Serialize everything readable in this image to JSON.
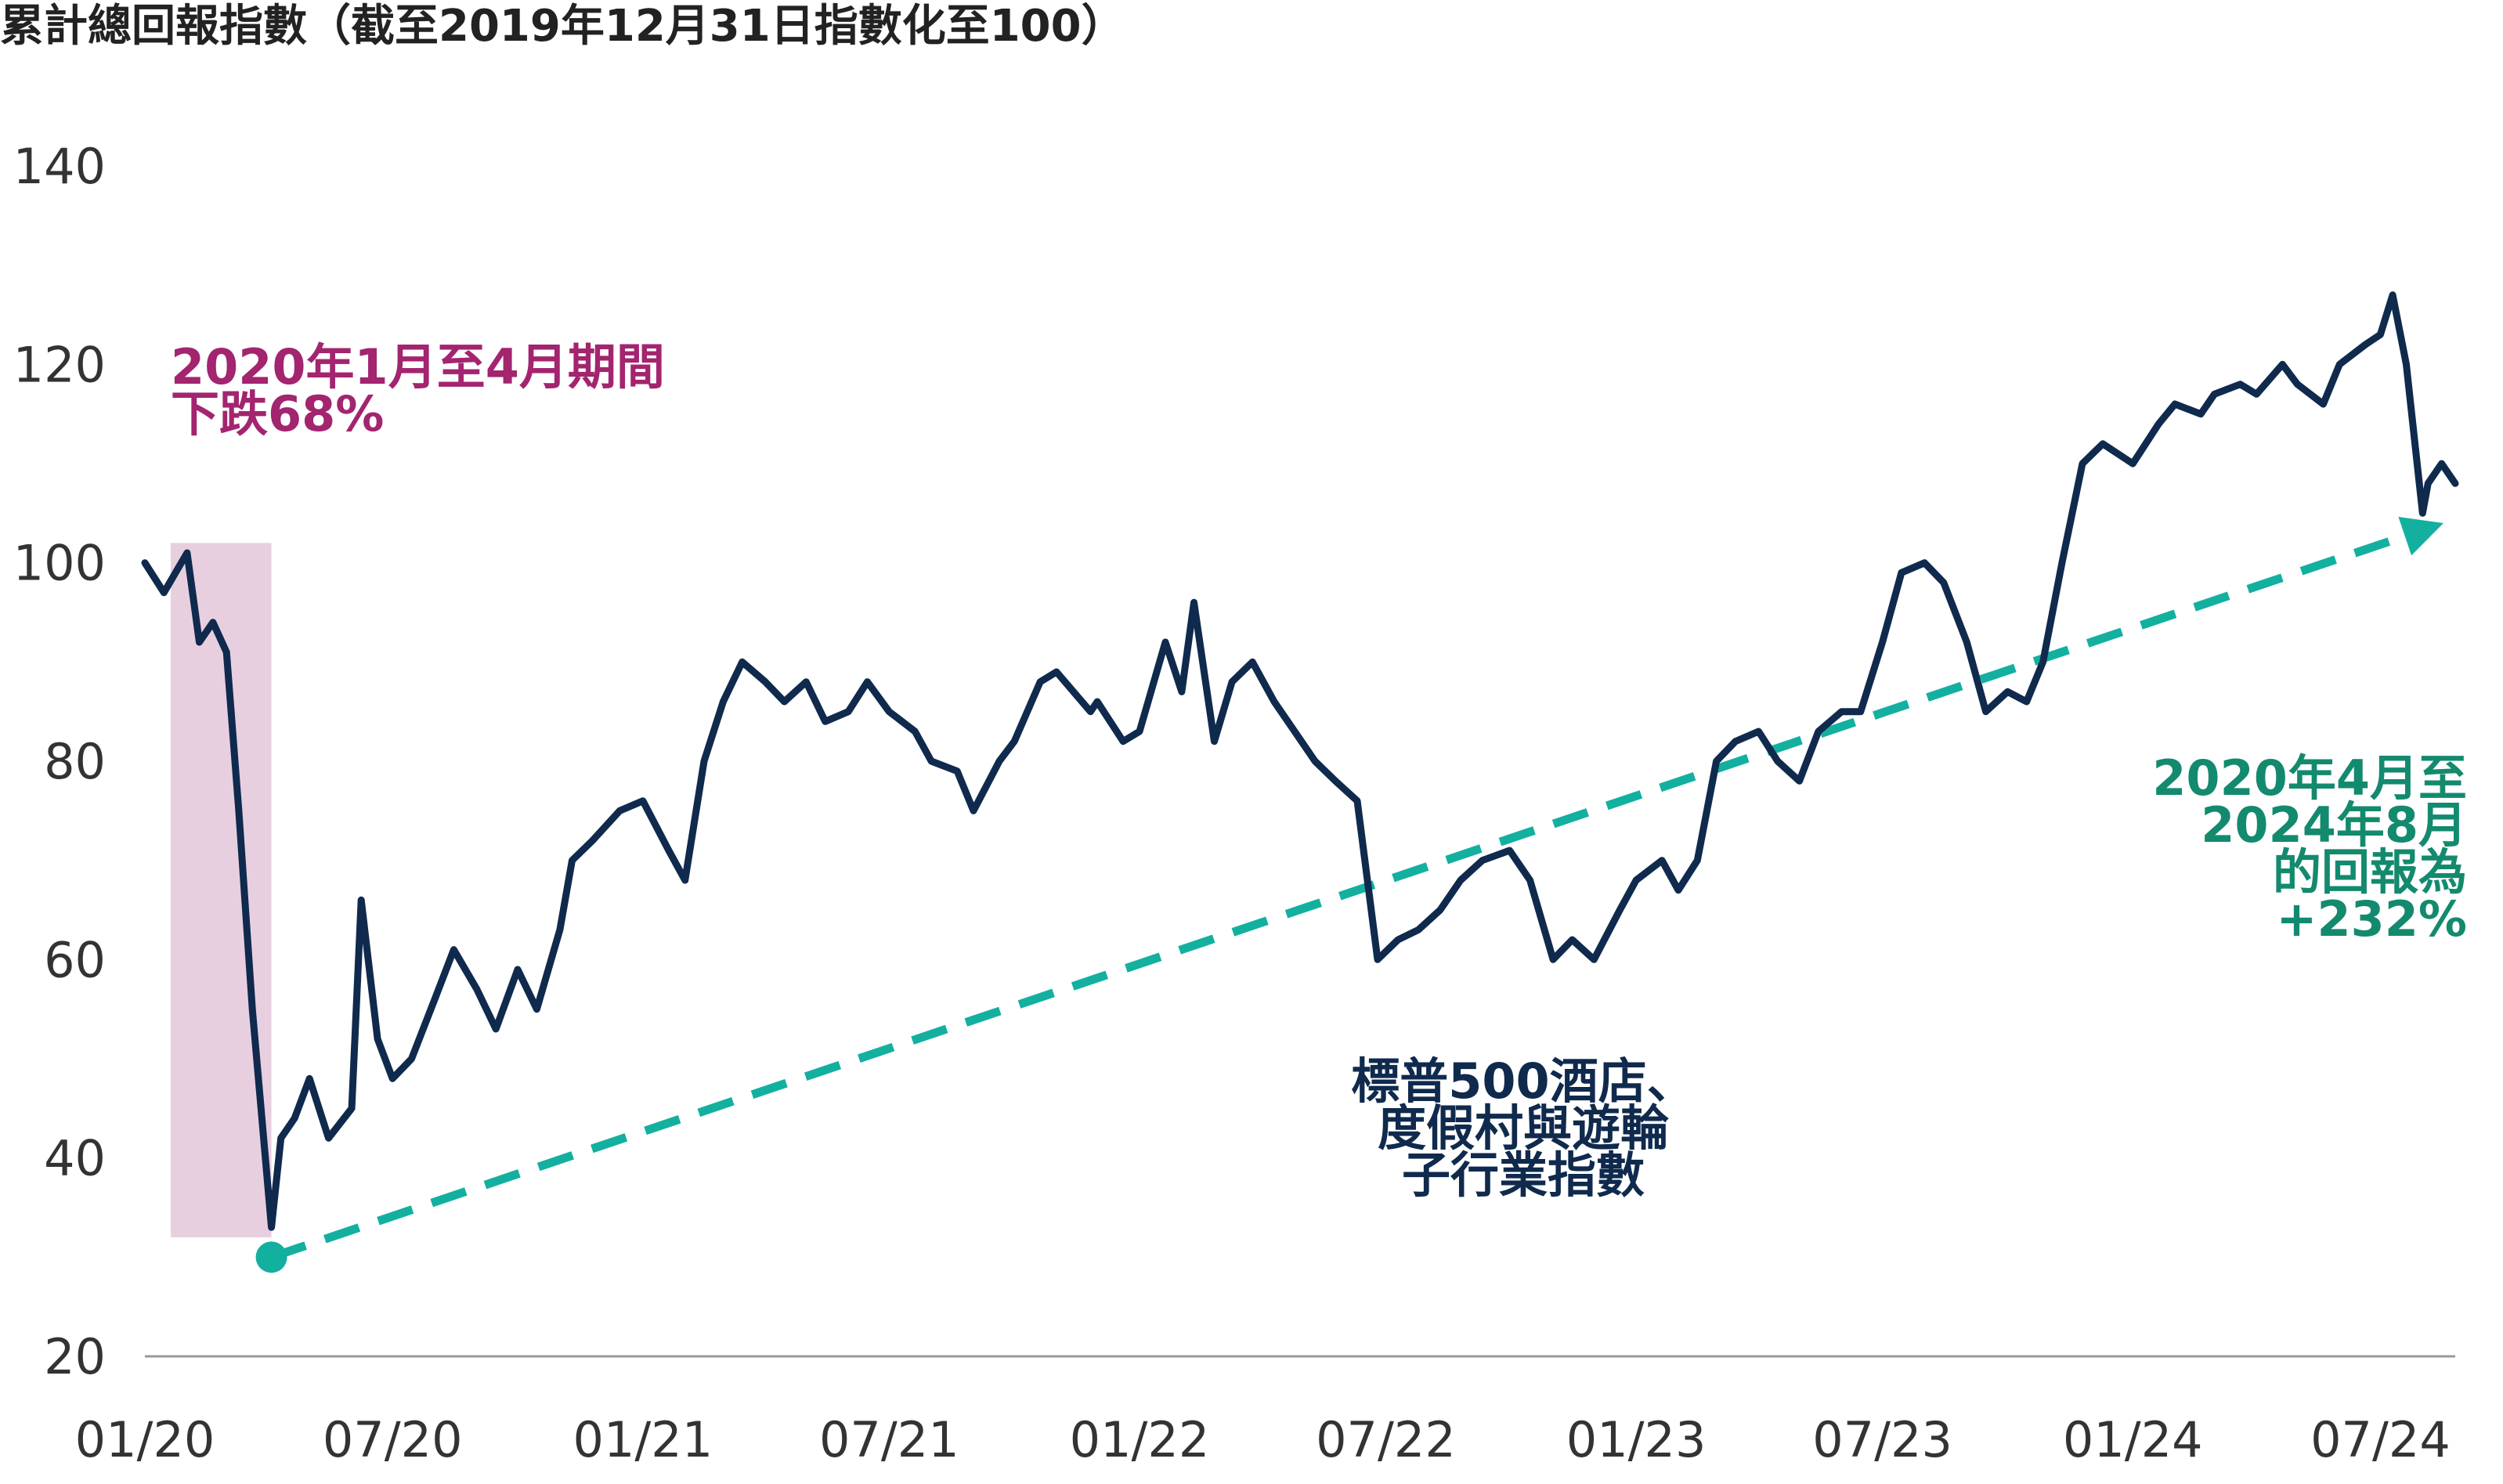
{
  "title": "累計總回報指數（截至2019年12月31日指數化至100）",
  "colors": {
    "series": "#0f2a4d",
    "trend": "#13b0a0",
    "shade": "#e8cfe0",
    "drop_annotation": "#a3246f",
    "gain_annotation": "#138a6e",
    "series_annotation": "#0f2a4d",
    "axis": "#999999"
  },
  "chart_data": {
    "type": "line",
    "title": "累計總回報指數（截至2019年12月31日指數化至100）",
    "xlabel": "",
    "ylabel": "",
    "ylim": [
      20,
      140
    ],
    "yticks": [
      "20",
      "40",
      "60",
      "80",
      "100",
      "120",
      "140"
    ],
    "xticks": [
      "01/20",
      "07/20",
      "01/21",
      "07/21",
      "01/22",
      "07/22",
      "01/23",
      "07/23",
      "01/24",
      "07/24"
    ],
    "grid": false,
    "series": [
      {
        "name": "標普500酒店、度假村與遊輪子行業指數",
        "x": [
          "2020-01-01",
          "2020-01-15",
          "2020-02-01",
          "2020-02-10",
          "2020-02-20",
          "2020-03-01",
          "2020-03-10",
          "2020-03-20",
          "2020-04-03",
          "2020-04-10",
          "2020-04-20",
          "2020-05-01",
          "2020-05-15",
          "2020-06-01",
          "2020-06-08",
          "2020-06-20",
          "2020-07-01",
          "2020-07-15",
          "2020-08-01",
          "2020-08-15",
          "2020-09-01",
          "2020-09-15",
          "2020-10-01",
          "2020-10-15",
          "2020-11-01",
          "2020-11-10",
          "2020-11-25",
          "2020-12-15",
          "2021-01-01",
          "2021-01-20",
          "2021-02-01",
          "2021-02-15",
          "2021-03-01",
          "2021-03-15",
          "2021-04-01",
          "2021-04-15",
          "2021-05-01",
          "2021-05-15",
          "2021-06-01",
          "2021-06-15",
          "2021-07-01",
          "2021-07-20",
          "2021-08-01",
          "2021-08-20",
          "2021-09-01",
          "2021-09-20",
          "2021-10-01",
          "2021-10-20",
          "2021-11-01",
          "2021-11-26",
          "2021-12-01",
          "2021-12-20",
          "2022-01-01",
          "2022-01-20",
          "2022-02-01",
          "2022-02-10",
          "2022-02-25",
          "2022-03-10",
          "2022-03-25",
          "2022-04-10",
          "2022-04-25",
          "2022-05-10",
          "2022-05-25",
          "2022-06-10",
          "2022-06-25",
          "2022-07-10",
          "2022-07-25",
          "2022-08-10",
          "2022-08-25",
          "2022-09-10",
          "2022-09-30",
          "2022-10-15",
          "2022-11-01",
          "2022-11-15",
          "2022-12-01",
          "2022-12-20",
          "2023-01-01",
          "2023-01-20",
          "2023-02-01",
          "2023-02-15",
          "2023-03-01",
          "2023-03-15",
          "2023-04-01",
          "2023-04-15",
          "2023-05-01",
          "2023-05-15",
          "2023-06-01",
          "2023-06-15",
          "2023-07-01",
          "2023-07-15",
          "2023-08-01",
          "2023-08-15",
          "2023-09-01",
          "2023-09-15",
          "2023-10-01",
          "2023-10-15",
          "2023-10-27",
          "2023-11-10",
          "2023-11-25",
          "2023-12-10",
          "2024-01-01",
          "2024-01-20",
          "2024-02-01",
          "2024-02-20",
          "2024-03-01",
          "2024-03-20",
          "2024-04-01",
          "2024-04-20",
          "2024-05-01",
          "2024-05-20",
          "2024-06-01",
          "2024-06-20",
          "2024-07-01",
          "2024-07-10",
          "2024-07-20",
          "2024-08-01",
          "2024-08-05",
          "2024-08-15",
          "2024-08-25"
        ],
        "values": [
          100,
          97,
          101,
          92,
          94,
          91,
          75,
          55,
          33,
          42,
          44,
          48,
          42,
          45,
          66,
          52,
          48,
          50,
          56,
          61,
          57,
          53,
          59,
          55,
          63,
          70,
          72,
          75,
          76,
          71,
          68,
          80,
          86,
          90,
          88,
          86,
          88,
          84,
          85,
          88,
          85,
          83,
          80,
          79,
          75,
          80,
          82,
          88,
          89,
          85,
          86,
          82,
          83,
          92,
          87,
          96,
          82,
          88,
          90,
          86,
          83,
          80,
          78,
          76,
          60,
          62,
          63,
          65,
          68,
          70,
          71,
          68,
          60,
          62,
          60,
          65,
          68,
          70,
          67,
          70,
          80,
          82,
          83,
          80,
          78,
          83,
          85,
          85,
          92,
          99,
          100,
          98,
          92,
          85,
          87,
          86,
          90,
          100,
          110,
          112,
          110,
          114,
          116,
          115,
          117,
          118,
          117,
          120,
          118,
          116,
          120,
          122,
          123,
          127,
          120,
          105,
          108,
          110,
          108
        ]
      }
    ],
    "trend": {
      "x": [
        "2020-04-03",
        "2024-08-25"
      ],
      "values": [
        30,
        104
      ]
    },
    "shaded_region": {
      "x": [
        "2020-01-20",
        "2020-04-03"
      ],
      "ylim": [
        32,
        102
      ]
    }
  },
  "annotations": {
    "drop": [
      "2020年1月至4月期間",
      "下跌68%"
    ],
    "gain": [
      "2020年4月至",
      "2024年8月",
      "的回報為",
      "+232%"
    ],
    "series": [
      "標普500酒店、",
      "度假村與遊輪",
      "子行業指數"
    ]
  }
}
